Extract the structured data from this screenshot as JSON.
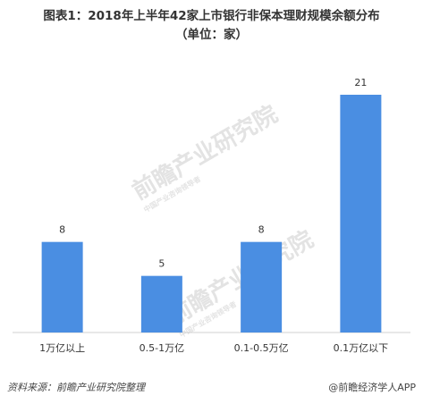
{
  "chart_data": {
    "type": "bar",
    "title": "图表1：2018年上半年42家上市银行非保本理财规模余额分布",
    "subtitle": "（单位：家）",
    "categories": [
      "1万亿以上",
      "0.5-1万亿",
      "0.1-0.5万亿",
      "0.1万亿以下"
    ],
    "values": [
      8,
      5,
      8,
      21
    ],
    "ylim": [
      0,
      21
    ],
    "grid": false,
    "legend": "none",
    "bar_color": "#4a8ee2"
  },
  "source": "资料来源：前瞻产业研究院整理",
  "brand": "@前瞻经济学人APP",
  "watermark": {
    "name": "前瞻产业研究院",
    "tagline": "中国产业咨询领导者"
  }
}
